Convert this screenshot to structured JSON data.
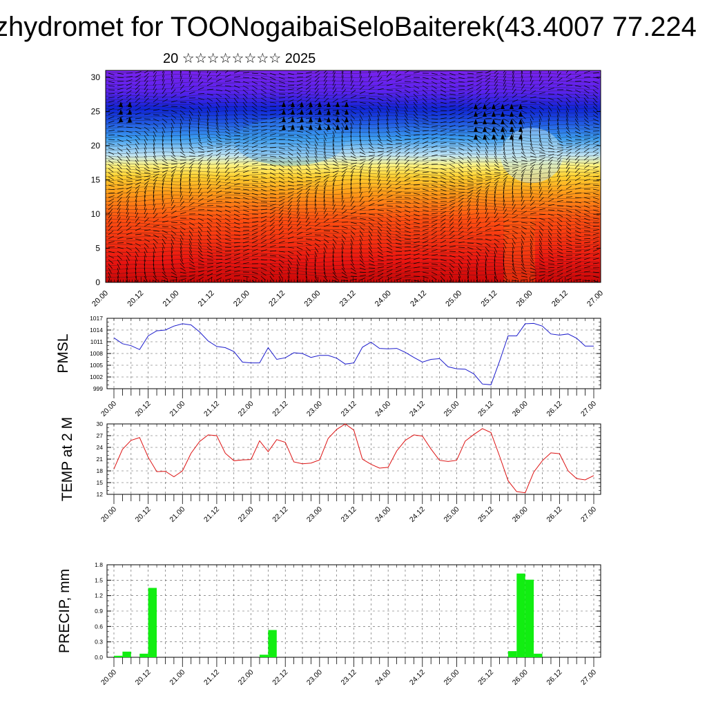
{
  "title": "zhydromet for TOONogaibaiSeloBaiterek(43.4007 77.224",
  "subtitle": "20 ☆☆☆☆☆☆☆☆ 2025",
  "chart_data": [
    {
      "type": "heatmap",
      "name": "cross-section",
      "x_ticks": [
        "20.00",
        "20.12",
        "21.00",
        "21.12",
        "22.00",
        "22.12",
        "23.00",
        "23.12",
        "24.00",
        "24.12",
        "25.00",
        "25.12",
        "26.00",
        "26.12",
        "27.00"
      ],
      "y_ticks": [
        0,
        5,
        10,
        15,
        20,
        25,
        30
      ],
      "ylim": [
        0,
        31
      ],
      "color_scale": [
        "#7a22ee",
        "#1024d8",
        "#3a9cf0",
        "#bfe4f4",
        "#fff27a",
        "#ffc020",
        "#ff7a10",
        "#f21e10",
        "#c80808"
      ],
      "wind_barbs": true
    },
    {
      "type": "line",
      "ylabel": "PMSL",
      "ylim": [
        999,
        1017
      ],
      "y_ticks": [
        999,
        1002,
        1005,
        1008,
        1011,
        1014,
        1017
      ],
      "x_ticks": [
        "20.00",
        "20.12",
        "21.00",
        "21.12",
        "22.00",
        "22.12",
        "23.00",
        "23.12",
        "24.00",
        "24.12",
        "25.00",
        "25.12",
        "26.00",
        "26.12",
        "27.00"
      ],
      "color": "#1a1acc",
      "values": [
        1012,
        1010.5,
        1010,
        1009,
        1012.5,
        1013.8,
        1014,
        1015,
        1015.6,
        1015.3,
        1013.5,
        1011.2,
        1009.8,
        1009.5,
        1008.5,
        1005.8,
        1005.6,
        1005.6,
        1009.5,
        1006.5,
        1006.9,
        1008.2,
        1008,
        1007,
        1007.5,
        1007.5,
        1006.8,
        1005.3,
        1005.6,
        1009.6,
        1010.9,
        1009.3,
        1009.2,
        1009.3,
        1008.3,
        1007,
        1005.8,
        1006.5,
        1006.7,
        1004.6,
        1004.1,
        1004,
        1002.8,
        1000.2,
        1000,
        1006,
        1012.5,
        1012.5,
        1015.6,
        1015.7,
        1015,
        1013,
        1012.7,
        1013,
        1011.9,
        1009.9,
        1009.9
      ]
    },
    {
      "type": "line",
      "ylabel": "TEMP at 2 M",
      "ylim": [
        12,
        30
      ],
      "y_ticks": [
        12,
        15,
        18,
        21,
        24,
        27,
        30
      ],
      "x_ticks": [
        "20.00",
        "20.12",
        "21.00",
        "21.12",
        "22.00",
        "22.12",
        "23.00",
        "23.12",
        "24.00",
        "24.12",
        "25.00",
        "25.12",
        "26.00",
        "26.12",
        "27.00"
      ],
      "color": "#dd1111",
      "values": [
        18.5,
        23.5,
        25.8,
        26.5,
        21.5,
        17.8,
        17.9,
        16.5,
        18,
        22.5,
        25.5,
        27.2,
        27,
        22.5,
        20.6,
        20.8,
        20.9,
        25.7,
        22.9,
        26,
        25.3,
        20.3,
        19.8,
        20,
        20.8,
        26.3,
        28.6,
        30,
        28.4,
        21,
        19.7,
        18.7,
        18.9,
        23.1,
        25.8,
        27.2,
        26.9,
        23.6,
        20.7,
        20.4,
        20.7,
        25.6,
        27.3,
        28.8,
        27.8,
        21.8,
        15.5,
        12.7,
        12.4,
        17.7,
        20.6,
        22.6,
        22.4,
        18,
        16,
        15.7,
        16.8
      ]
    },
    {
      "type": "bar",
      "ylabel": "PRECIP, mm",
      "ylim": [
        0,
        1.8
      ],
      "y_ticks": [
        "0.0",
        "0.3",
        "0.6",
        "0.9",
        "1.2",
        "1.5",
        "1.8"
      ],
      "x_ticks": [
        "20.00",
        "20.12",
        "21.00",
        "21.12",
        "22.00",
        "22.12",
        "23.00",
        "23.12",
        "24.00",
        "24.12",
        "25.00",
        "25.12",
        "26.00",
        "26.12",
        "27.00"
      ],
      "color": "#11ee11",
      "bars": [
        {
          "hour": 0,
          "value": 0.03
        },
        {
          "hour": 3,
          "value": 0.11
        },
        {
          "hour": 9,
          "value": 0.07
        },
        {
          "hour": 12,
          "value": 1.35
        },
        {
          "hour": 51,
          "value": 0.05
        },
        {
          "hour": 54,
          "value": 0.53
        },
        {
          "hour": 138,
          "value": 0.12
        },
        {
          "hour": 141,
          "value": 1.63
        },
        {
          "hour": 144,
          "value": 1.51
        },
        {
          "hour": 147,
          "value": 0.07
        }
      ]
    }
  ]
}
